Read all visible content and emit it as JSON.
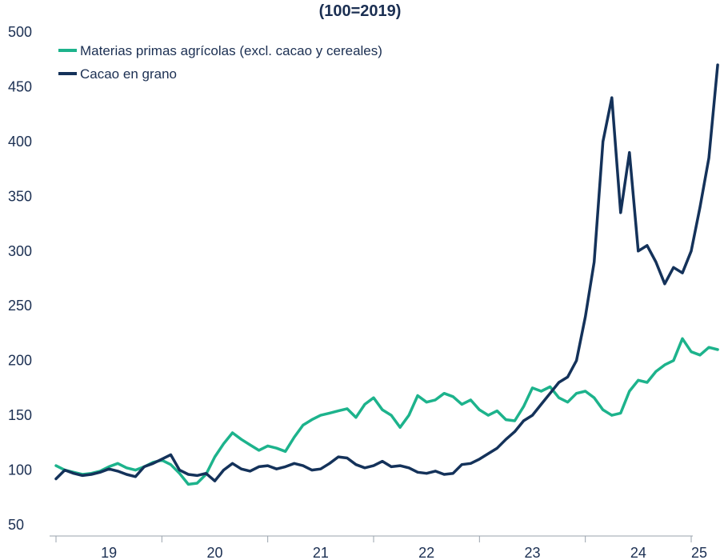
{
  "chart_data": {
    "type": "line",
    "title": "(100=2019)",
    "xlabel": "",
    "ylabel": "",
    "ylim": [
      50,
      500
    ],
    "y_ticks": [
      50,
      100,
      150,
      200,
      250,
      300,
      350,
      400,
      450,
      500
    ],
    "x_tick_labels": [
      "19",
      "20",
      "21",
      "22",
      "23",
      "24",
      "25"
    ],
    "grid": false,
    "legend_position": "top-left",
    "series": [
      {
        "name": "Materias primas agrícolas (excl. cacao y cereales)",
        "color": "#1db38c",
        "points": [
          [
            "2019-01",
            104
          ],
          [
            "2019-02",
            100
          ],
          [
            "2019-03",
            98
          ],
          [
            "2019-04",
            96
          ],
          [
            "2019-05",
            97
          ],
          [
            "2019-06",
            99
          ],
          [
            "2019-07",
            103
          ],
          [
            "2019-08",
            106
          ],
          [
            "2019-09",
            102
          ],
          [
            "2019-10",
            100
          ],
          [
            "2019-11",
            103
          ],
          [
            "2019-12",
            107
          ],
          [
            "2020-01",
            109
          ],
          [
            "2020-02",
            105
          ],
          [
            "2020-03",
            97
          ],
          [
            "2020-04",
            87
          ],
          [
            "2020-05",
            88
          ],
          [
            "2020-06",
            96
          ],
          [
            "2020-07",
            112
          ],
          [
            "2020-08",
            124
          ],
          [
            "2020-09",
            134
          ],
          [
            "2020-10",
            128
          ],
          [
            "2020-11",
            123
          ],
          [
            "2020-12",
            118
          ],
          [
            "2021-01",
            122
          ],
          [
            "2021-02",
            120
          ],
          [
            "2021-03",
            117
          ],
          [
            "2021-04",
            130
          ],
          [
            "2021-05",
            141
          ],
          [
            "2021-06",
            146
          ],
          [
            "2021-07",
            150
          ],
          [
            "2021-08",
            152
          ],
          [
            "2021-09",
            154
          ],
          [
            "2021-10",
            156
          ],
          [
            "2021-11",
            148
          ],
          [
            "2021-12",
            160
          ],
          [
            "2022-01",
            166
          ],
          [
            "2022-02",
            155
          ],
          [
            "2022-03",
            150
          ],
          [
            "2022-04",
            139
          ],
          [
            "2022-05",
            150
          ],
          [
            "2022-06",
            168
          ],
          [
            "2022-07",
            162
          ],
          [
            "2022-08",
            164
          ],
          [
            "2022-09",
            170
          ],
          [
            "2022-10",
            167
          ],
          [
            "2022-11",
            160
          ],
          [
            "2022-12",
            164
          ],
          [
            "2023-01",
            155
          ],
          [
            "2023-02",
            150
          ],
          [
            "2023-03",
            154
          ],
          [
            "2023-04",
            146
          ],
          [
            "2023-05",
            145
          ],
          [
            "2023-06",
            158
          ],
          [
            "2023-07",
            175
          ],
          [
            "2023-08",
            172
          ],
          [
            "2023-09",
            176
          ],
          [
            "2023-10",
            166
          ],
          [
            "2023-11",
            162
          ],
          [
            "2023-12",
            170
          ],
          [
            "2024-01",
            172
          ],
          [
            "2024-02",
            166
          ],
          [
            "2024-03",
            155
          ],
          [
            "2024-04",
            150
          ],
          [
            "2024-05",
            152
          ],
          [
            "2024-06",
            172
          ],
          [
            "2024-07",
            182
          ],
          [
            "2024-08",
            180
          ],
          [
            "2024-09",
            190
          ],
          [
            "2024-10",
            196
          ],
          [
            "2024-11",
            200
          ],
          [
            "2024-12",
            220
          ],
          [
            "2025-01",
            208
          ],
          [
            "2025-02",
            205
          ],
          [
            "2025-03",
            212
          ],
          [
            "2025-04",
            210
          ]
        ]
      },
      {
        "name": "Cacao en grano",
        "color": "#14325a",
        "points": [
          [
            "2019-01",
            92
          ],
          [
            "2019-02",
            100
          ],
          [
            "2019-03",
            97
          ],
          [
            "2019-04",
            95
          ],
          [
            "2019-05",
            96
          ],
          [
            "2019-06",
            98
          ],
          [
            "2019-07",
            101
          ],
          [
            "2019-08",
            99
          ],
          [
            "2019-09",
            96
          ],
          [
            "2019-10",
            94
          ],
          [
            "2019-11",
            103
          ],
          [
            "2019-12",
            106
          ],
          [
            "2020-01",
            110
          ],
          [
            "2020-02",
            114
          ],
          [
            "2020-03",
            100
          ],
          [
            "2020-04",
            96
          ],
          [
            "2020-05",
            95
          ],
          [
            "2020-06",
            97
          ],
          [
            "2020-07",
            90
          ],
          [
            "2020-08",
            100
          ],
          [
            "2020-09",
            106
          ],
          [
            "2020-10",
            101
          ],
          [
            "2020-11",
            99
          ],
          [
            "2020-12",
            103
          ],
          [
            "2021-01",
            104
          ],
          [
            "2021-02",
            101
          ],
          [
            "2021-03",
            103
          ],
          [
            "2021-04",
            106
          ],
          [
            "2021-05",
            104
          ],
          [
            "2021-06",
            100
          ],
          [
            "2021-07",
            101
          ],
          [
            "2021-08",
            106
          ],
          [
            "2021-09",
            112
          ],
          [
            "2021-10",
            111
          ],
          [
            "2021-11",
            105
          ],
          [
            "2021-12",
            102
          ],
          [
            "2022-01",
            104
          ],
          [
            "2022-02",
            108
          ],
          [
            "2022-03",
            103
          ],
          [
            "2022-04",
            104
          ],
          [
            "2022-05",
            102
          ],
          [
            "2022-06",
            98
          ],
          [
            "2022-07",
            97
          ],
          [
            "2022-08",
            99
          ],
          [
            "2022-09",
            96
          ],
          [
            "2022-10",
            97
          ],
          [
            "2022-11",
            105
          ],
          [
            "2022-12",
            106
          ],
          [
            "2023-01",
            110
          ],
          [
            "2023-02",
            115
          ],
          [
            "2023-03",
            120
          ],
          [
            "2023-04",
            128
          ],
          [
            "2023-05",
            135
          ],
          [
            "2023-06",
            145
          ],
          [
            "2023-07",
            150
          ],
          [
            "2023-08",
            160
          ],
          [
            "2023-09",
            170
          ],
          [
            "2023-10",
            180
          ],
          [
            "2023-11",
            185
          ],
          [
            "2023-12",
            200
          ],
          [
            "2024-01",
            240
          ],
          [
            "2024-02",
            290
          ],
          [
            "2024-03",
            400
          ],
          [
            "2024-04",
            440
          ],
          [
            "2024-05",
            335
          ],
          [
            "2024-06",
            390
          ],
          [
            "2024-07",
            300
          ],
          [
            "2024-08",
            305
          ],
          [
            "2024-09",
            290
          ],
          [
            "2024-10",
            270
          ],
          [
            "2024-11",
            285
          ],
          [
            "2024-12",
            280
          ],
          [
            "2025-01",
            300
          ],
          [
            "2025-02",
            340
          ],
          [
            "2025-03",
            385
          ],
          [
            "2025-04",
            470
          ]
        ]
      }
    ]
  }
}
